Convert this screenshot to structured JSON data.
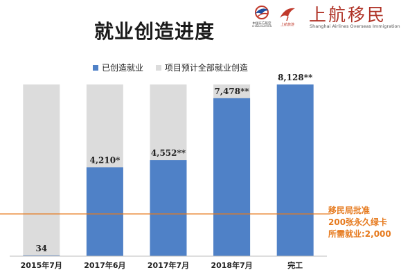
{
  "header": {
    "title": "就业创造进度"
  },
  "logos": {
    "china_eastern_cn": "中国东方航空",
    "china_eastern_en": "CHINA EASTERN",
    "shanghai_airlines_cn": "上航移民",
    "shanghai_airlines_en": "Shanghai Airlines Overseas Immigration"
  },
  "colors": {
    "created": "#4f81c7",
    "total": "#dcdcdc",
    "reference": "#e67a1e",
    "brand": "#b03327"
  },
  "chart_data": {
    "type": "bar",
    "categories": [
      "2015年7月",
      "2017年6月",
      "2017年7月",
      "2018年7月",
      "完工"
    ],
    "series": [
      {
        "name": "已创造就业",
        "values": [
          34,
          4210,
          4552,
          7478,
          8128
        ]
      },
      {
        "name": "项目预计全部就业创造",
        "values": [
          8128,
          8128,
          8128,
          8128,
          8128
        ]
      }
    ],
    "data_labels": [
      "34",
      "4,210*",
      "4,552**",
      "7,478**",
      "8,128**"
    ],
    "ylim": [
      0,
      8128
    ],
    "reference_line": {
      "value": 2000,
      "label_lines": [
        "移民局批准",
        "200张永久绿卡",
        "所需就业:2,000"
      ]
    },
    "legend_position": "top",
    "grid": false
  }
}
